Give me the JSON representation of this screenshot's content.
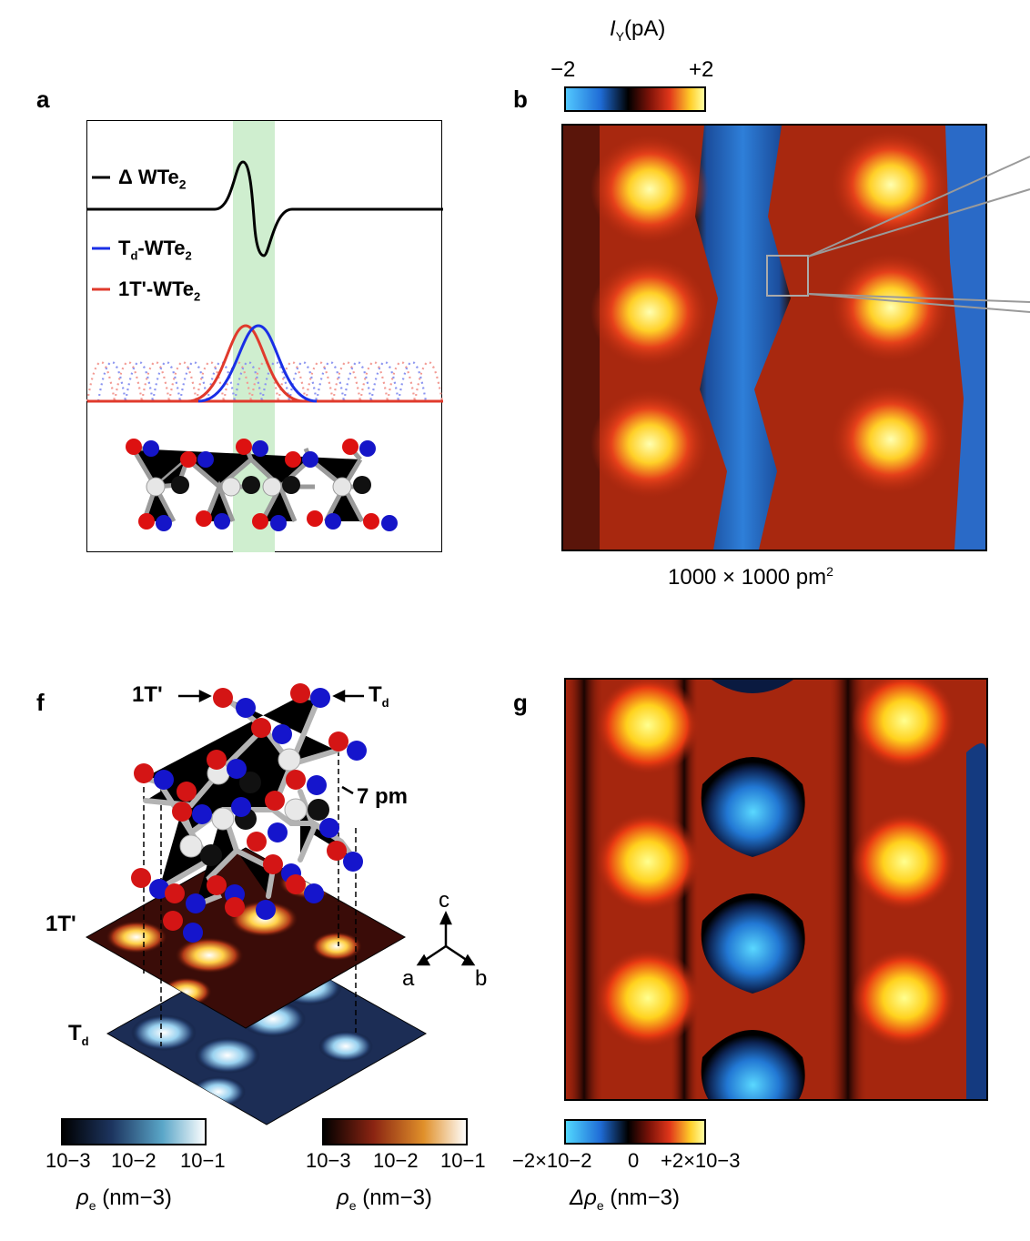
{
  "panels": {
    "a": {
      "label": "a",
      "delta_legend": "Δ WTe",
      "delta_sub": "2",
      "td_legend_main": "T",
      "td_legend_sub": "d",
      "td_legend_rest": "-WTe",
      "td_legend_sub2": "2",
      "one_t_legend": "1T'-WTe",
      "one_t_sub": "2",
      "colors": {
        "delta": "#000000",
        "td": "#1a2fe6",
        "one_t": "#e03a2c",
        "highlight": "#cfeecf"
      }
    },
    "b": {
      "label": "b",
      "colorbar_title_main": "I",
      "colorbar_title_sub": "Y",
      "colorbar_title_rest": "(pA)",
      "colorbar_min": "−2",
      "colorbar_max": "+2",
      "caption": "1000 × 1000 pm",
      "caption_sup": "2"
    },
    "f": {
      "label": "f",
      "arrow_left": "1T'",
      "arrow_right_main": "T",
      "arrow_right_sub": "d",
      "shift_label": "7 pm",
      "layer_top": "1T'",
      "layer_bottom_main": "T",
      "layer_bottom_sub": "d",
      "axis_c": "c",
      "axis_a": "a",
      "axis_b": "b",
      "cbar1_ticks": [
        "10−3",
        "10−2",
        "10−1"
      ],
      "cbar2_ticks": [
        "10−3",
        "10−2",
        "10−1"
      ],
      "cbar_label_main": "ρ",
      "cbar_label_sub": "e",
      "cbar_label_rest": " (nm−3)"
    },
    "g": {
      "label": "g",
      "cbar_ticks": [
        "−2×10−2",
        "0",
        "+2×10−3"
      ],
      "cbar_label_main": "Δρ",
      "cbar_label_sub": "e",
      "cbar_label_rest": " (nm−3)"
    }
  }
}
